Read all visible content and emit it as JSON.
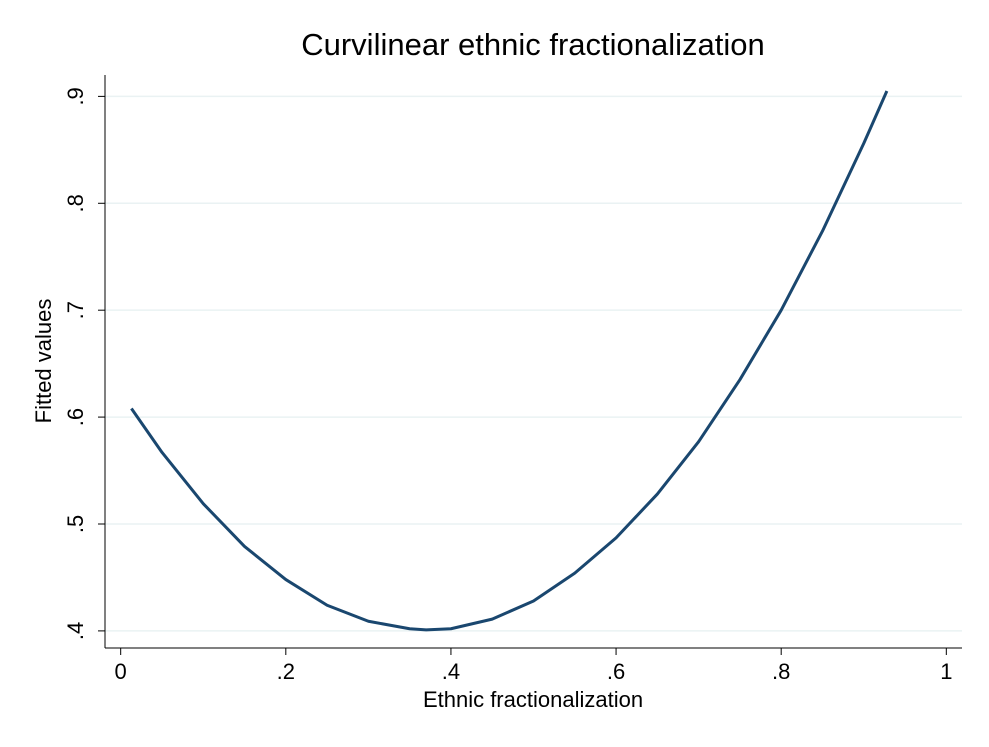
{
  "chart_data": {
    "type": "line",
    "title": "Curvilinear ethnic fractionalization",
    "x_label": "Ethnic fractionalization",
    "y_label": "Fitted values",
    "x": [
      0.013,
      0.05,
      0.1,
      0.15,
      0.2,
      0.25,
      0.3,
      0.35,
      0.37,
      0.4,
      0.45,
      0.5,
      0.55,
      0.6,
      0.65,
      0.7,
      0.75,
      0.8,
      0.85,
      0.9,
      0.928
    ],
    "series": [
      {
        "name": "Fitted values",
        "color": "#1a476f",
        "values": [
          0.608,
          0.567,
          0.519,
          0.479,
          0.448,
          0.424,
          0.409,
          0.402,
          0.401,
          0.402,
          0.411,
          0.428,
          0.454,
          0.487,
          0.528,
          0.577,
          0.635,
          0.7,
          0.774,
          0.856,
          0.905
        ]
      }
    ],
    "xlim": [
      -0.019,
      1.019
    ],
    "ylim": [
      0.384,
      0.92
    ],
    "xticks": [
      0,
      {
        "value": 0.2,
        "label": ".2"
      },
      {
        "value": 0.4,
        "label": ".4"
      },
      {
        "value": 0.6,
        "label": ".6"
      },
      {
        "value": 0.8,
        "label": ".8"
      },
      1
    ],
    "yticks": [
      {
        "value": 0.4,
        "label": ".4"
      },
      {
        "value": 0.5,
        "label": ".5"
      },
      {
        "value": 0.6,
        "label": ".6"
      },
      {
        "value": 0.7,
        "label": ".7"
      },
      {
        "value": 0.8,
        "label": ".8"
      },
      {
        "value": 0.9,
        "label": ".9"
      }
    ],
    "grid": true
  }
}
